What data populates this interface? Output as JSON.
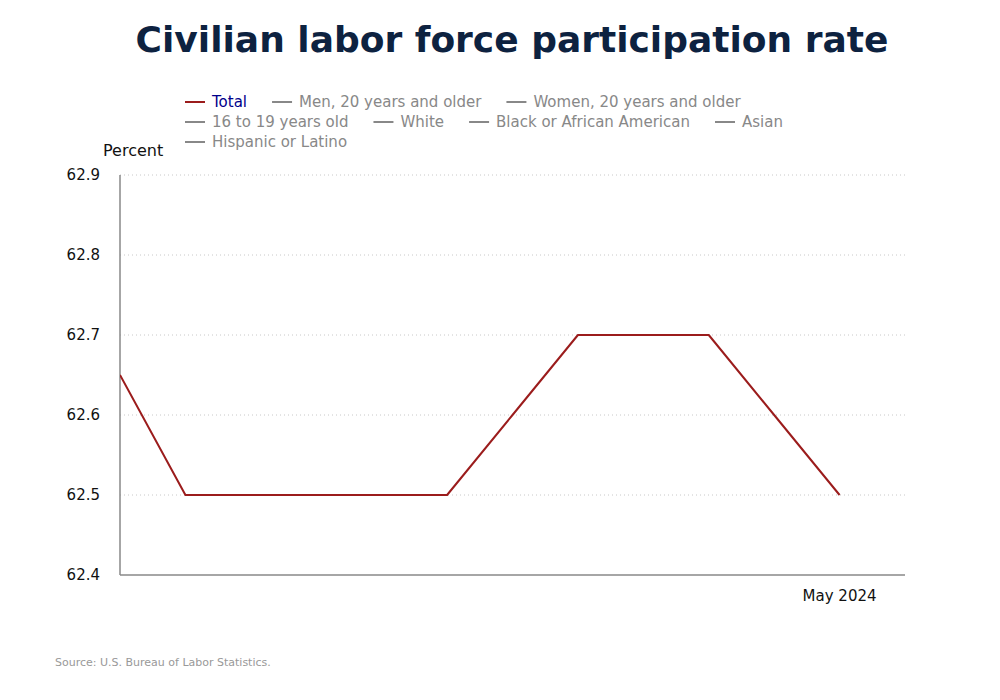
{
  "chart_data": {
    "type": "line",
    "title": "Civilian labor force participation rate",
    "y_label": "Percent",
    "source": "Source: U.S. Bureau of Labor Statistics.",
    "categories": [
      null,
      null,
      null,
      null,
      null,
      null,
      null,
      null,
      null,
      null,
      null,
      "May 2024"
    ],
    "series": [
      {
        "name": "Total",
        "color": "#9b1c1c",
        "values": [
          62.65,
          62.5,
          62.5,
          62.5,
          62.5,
          62.5,
          62.6,
          62.7,
          62.7,
          62.7,
          62.6,
          62.5
        ]
      },
      {
        "name": "Men, 20 years and older",
        "color": "#888888",
        "values": [
          null,
          null,
          null,
          null,
          null,
          null,
          null,
          null,
          null,
          null,
          null,
          null
        ]
      },
      {
        "name": "Women, 20 years and older",
        "color": "#888888",
        "values": [
          null,
          null,
          null,
          null,
          null,
          null,
          null,
          null,
          null,
          null,
          null,
          null
        ]
      },
      {
        "name": "16 to 19 years old",
        "color": "#888888",
        "values": [
          null,
          null,
          null,
          null,
          null,
          null,
          null,
          null,
          null,
          null,
          null,
          null
        ]
      },
      {
        "name": "White",
        "color": "#888888",
        "values": [
          null,
          null,
          null,
          null,
          null,
          null,
          null,
          null,
          null,
          null,
          null,
          null
        ]
      },
      {
        "name": "Black or African American",
        "color": "#888888",
        "values": [
          null,
          null,
          null,
          null,
          null,
          null,
          null,
          null,
          null,
          null,
          null,
          null
        ]
      },
      {
        "name": "Asian",
        "color": "#888888",
        "values": [
          null,
          null,
          null,
          null,
          null,
          null,
          null,
          null,
          null,
          null,
          null,
          null
        ]
      },
      {
        "name": "Hispanic or Latino",
        "color": "#888888",
        "values": [
          null,
          null,
          null,
          null,
          null,
          null,
          null,
          null,
          null,
          null,
          null,
          null
        ]
      }
    ],
    "ylim": [
      62.4,
      62.9
    ],
    "yticks": [
      62.4,
      62.5,
      62.6,
      62.7,
      62.8,
      62.9
    ],
    "grid": true,
    "legend": "top"
  }
}
